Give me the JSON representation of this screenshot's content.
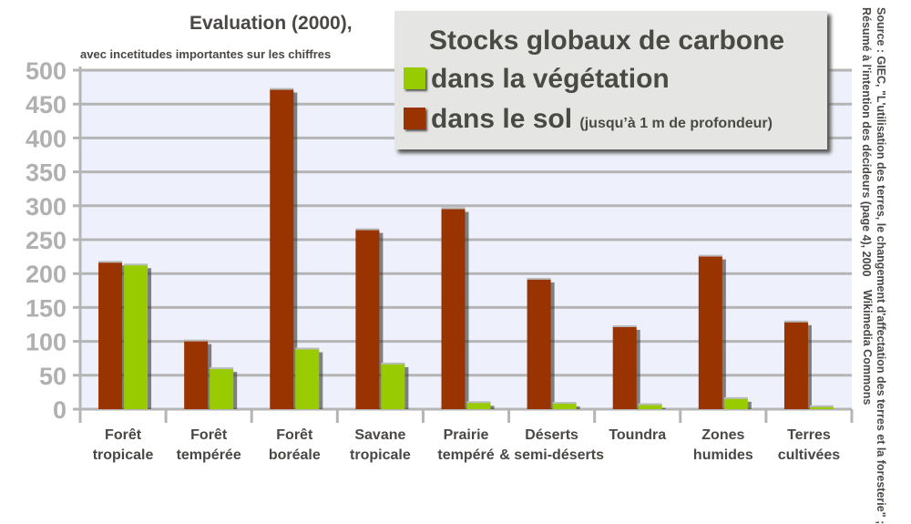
{
  "chart_data": {
    "type": "bar",
    "title": "Evaluation (2000),",
    "subtitle": "avec incetitudes importantes sur les chiffres",
    "categories": [
      [
        "Forêt",
        "tropicale"
      ],
      [
        "Forêt",
        "tempérée"
      ],
      [
        "Forêt",
        "boréale"
      ],
      [
        "Savane",
        "tropicale"
      ],
      [
        "Prairie",
        "tempéré"
      ],
      [
        "Déserts",
        "& semi-déserts"
      ],
      [
        "Toundra",
        ""
      ],
      [
        "Zones",
        "humides"
      ],
      [
        "Terres",
        "cultivées"
      ]
    ],
    "series": [
      {
        "name": "dans le sol",
        "note": "(jusqu’à 1 m de profondeur)",
        "color": "#993300",
        "values": [
          216,
          100,
          471,
          264,
          295,
          191,
          121,
          225,
          128
        ]
      },
      {
        "name": "dans  la végétation",
        "color": "#99cc00",
        "values": [
          212,
          59,
          88,
          66,
          9,
          8,
          6,
          15,
          3
        ]
      }
    ],
    "ylim": [
      0,
      500
    ],
    "yticks": [
      "0",
      "50",
      "100",
      "150",
      "200",
      "250",
      "300",
      "350",
      "400",
      "450",
      "500"
    ],
    "grid": true,
    "legend": {
      "title": "Stocks globaux de carbone",
      "placement": "top-right"
    },
    "source": [
      "Source : GIEC, \"L'utilisation des terres, le changement d'affectation des terres et la foresterie\" ;",
      "Résumé à l'intention des décideurs (page 4), 2000"
    ],
    "credit": "Wikimedia Commons"
  }
}
